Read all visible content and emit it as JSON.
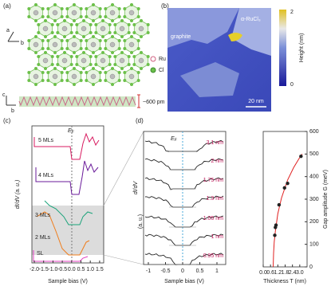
{
  "panels": {
    "a": {
      "label": "(a)",
      "axis_a": "a",
      "axis_b": "b",
      "axis_c": "c",
      "axis_b2": "b",
      "legend_ru": "Ru",
      "legend_cl": "Cl",
      "height": "~600 pm"
    },
    "b": {
      "label": "(b)",
      "material": "α-RuCl₃",
      "substrate": "graphite",
      "scale_bar": "20 nm",
      "colorbar_max": "2",
      "colorbar_min": "0",
      "colorbar_label": "Height (nm)"
    },
    "c": {
      "label": "(c)",
      "ylabel": "dI/dV (a. u.)",
      "fermi": "E",
      "fermi_sub": "F",
      "curves": [
        "5 MLs",
        "4 MLs",
        "3 MLs",
        "2 MLs",
        "SL"
      ],
      "xticks": [
        "-2.0",
        "-1.5",
        "-1.0",
        "-0.5",
        "0.0",
        "0.5",
        "1.0",
        "1.5"
      ],
      "xlabel": "Sample bias (V)"
    },
    "d": {
      "label": "(d)",
      "ylabel1": "dI/dV",
      "ylabel2": "(a. u.)",
      "fermi": "E",
      "fermi_sub": "F",
      "curves": [
        "3.1 nm",
        "2 nm",
        "1.75 nm",
        "1.3 nm",
        "1.05 nm",
        "1 nm",
        "0.95 nm"
      ],
      "xticks": [
        "-1",
        "-0.5",
        "0",
        "0.5",
        "1"
      ],
      "xlabel": "Sample bias (V)"
    }
  },
  "chart_data": {
    "type": "scatter",
    "xlabel": "Thickness T (nm)",
    "ylabel": "Gap amplitude G (meV)",
    "x": [
      0.95,
      1.0,
      1.05,
      1.3,
      1.75,
      2.0,
      3.1
    ],
    "values": [
      140,
      175,
      185,
      275,
      350,
      370,
      490
    ],
    "color": "#222222",
    "fit": {
      "color": "#e02020",
      "x": [
        0.82,
        0.85,
        0.9,
        1.0,
        1.2,
        1.5,
        2.0,
        2.5,
        3.0,
        3.2
      ],
      "values": [
        0,
        60,
        110,
        160,
        235,
        305,
        385,
        440,
        485,
        500
      ]
    },
    "xlim": [
      0,
      3.6
    ],
    "ylim": [
      0,
      600
    ],
    "xticks": [
      {
        "value": 0,
        "label": "0.0"
      },
      0.6,
      1.2,
      1.8,
      2.4,
      {
        "value": 3,
        "label": "3.0"
      }
    ],
    "yticks": [
      0,
      100,
      200,
      300,
      400,
      500,
      600
    ]
  }
}
